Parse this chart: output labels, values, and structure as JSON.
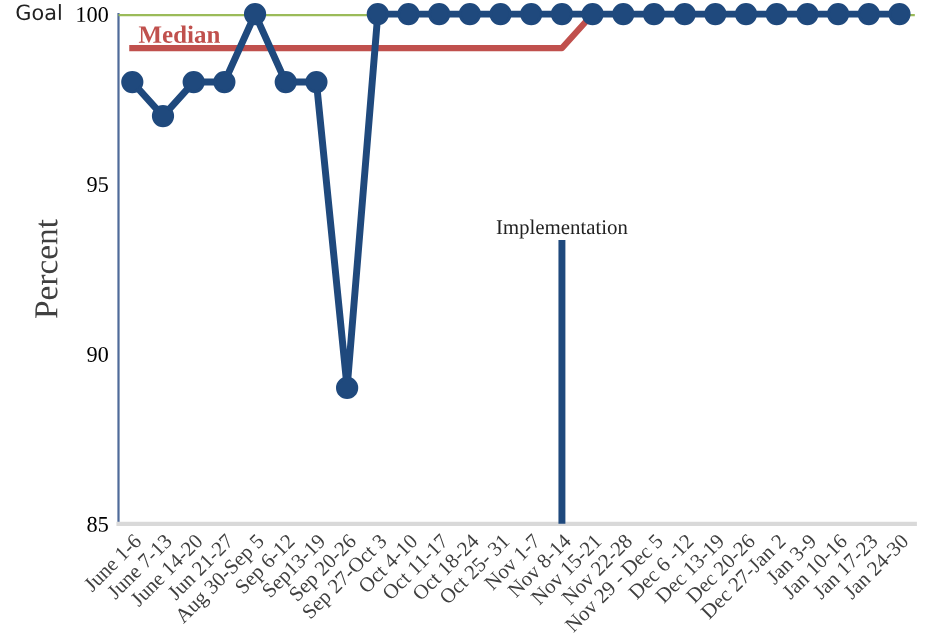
{
  "chart_data": {
    "type": "line",
    "ylabel": "Percent",
    "categories": [
      "June 1-6",
      "June 7-13",
      "June 14-20",
      "Jun 21-27",
      "Aug 30-Sep 5",
      "Sep 6-12",
      "Sep13-19",
      "Sep 20-26",
      "Sep 27-Oct 3",
      "Oct 4-10",
      "Oct 11-17",
      "Oct 18-24",
      "Oct 25- 31",
      "Nov 1-7",
      "Nov 8-14",
      "Nov 15-21",
      "Nov 22-28",
      "Nov 29 - Dec 5",
      "Dec 6 -12",
      "Dec 13-19",
      "Dec 20-26",
      "Dec 27-Jan 2",
      "Jan 3-9",
      "Jan 10-16",
      "Jan 17-23",
      "Jan 24-30"
    ],
    "series": [
      {
        "name": "Median",
        "color": "#c0504d",
        "marker": "none",
        "values": [
          99,
          99,
          99,
          99,
          99,
          99,
          99,
          99,
          99,
          99,
          99,
          99,
          99,
          99,
          99,
          100,
          null,
          null,
          null,
          null,
          null,
          null,
          null,
          null,
          null,
          null
        ]
      },
      {
        "color": "#1f497d",
        "marker": "circle",
        "values": [
          98,
          97,
          98,
          98,
          100,
          98,
          98,
          89,
          100,
          100,
          100,
          100,
          100,
          100,
          100,
          100,
          100,
          100,
          100,
          100,
          100,
          100,
          100,
          100,
          100,
          100
        ]
      }
    ],
    "ref_lines": [
      {
        "axis": "y",
        "value": 100,
        "label": "Goal",
        "color": "#9bbb59"
      },
      {
        "axis": "x",
        "value": "Nov 8-14",
        "label": "Implementation",
        "color": "#1f497d"
      }
    ],
    "ylim": [
      85,
      100
    ],
    "yticks": [
      85,
      90,
      95,
      100
    ],
    "grid": false,
    "legend": false
  }
}
